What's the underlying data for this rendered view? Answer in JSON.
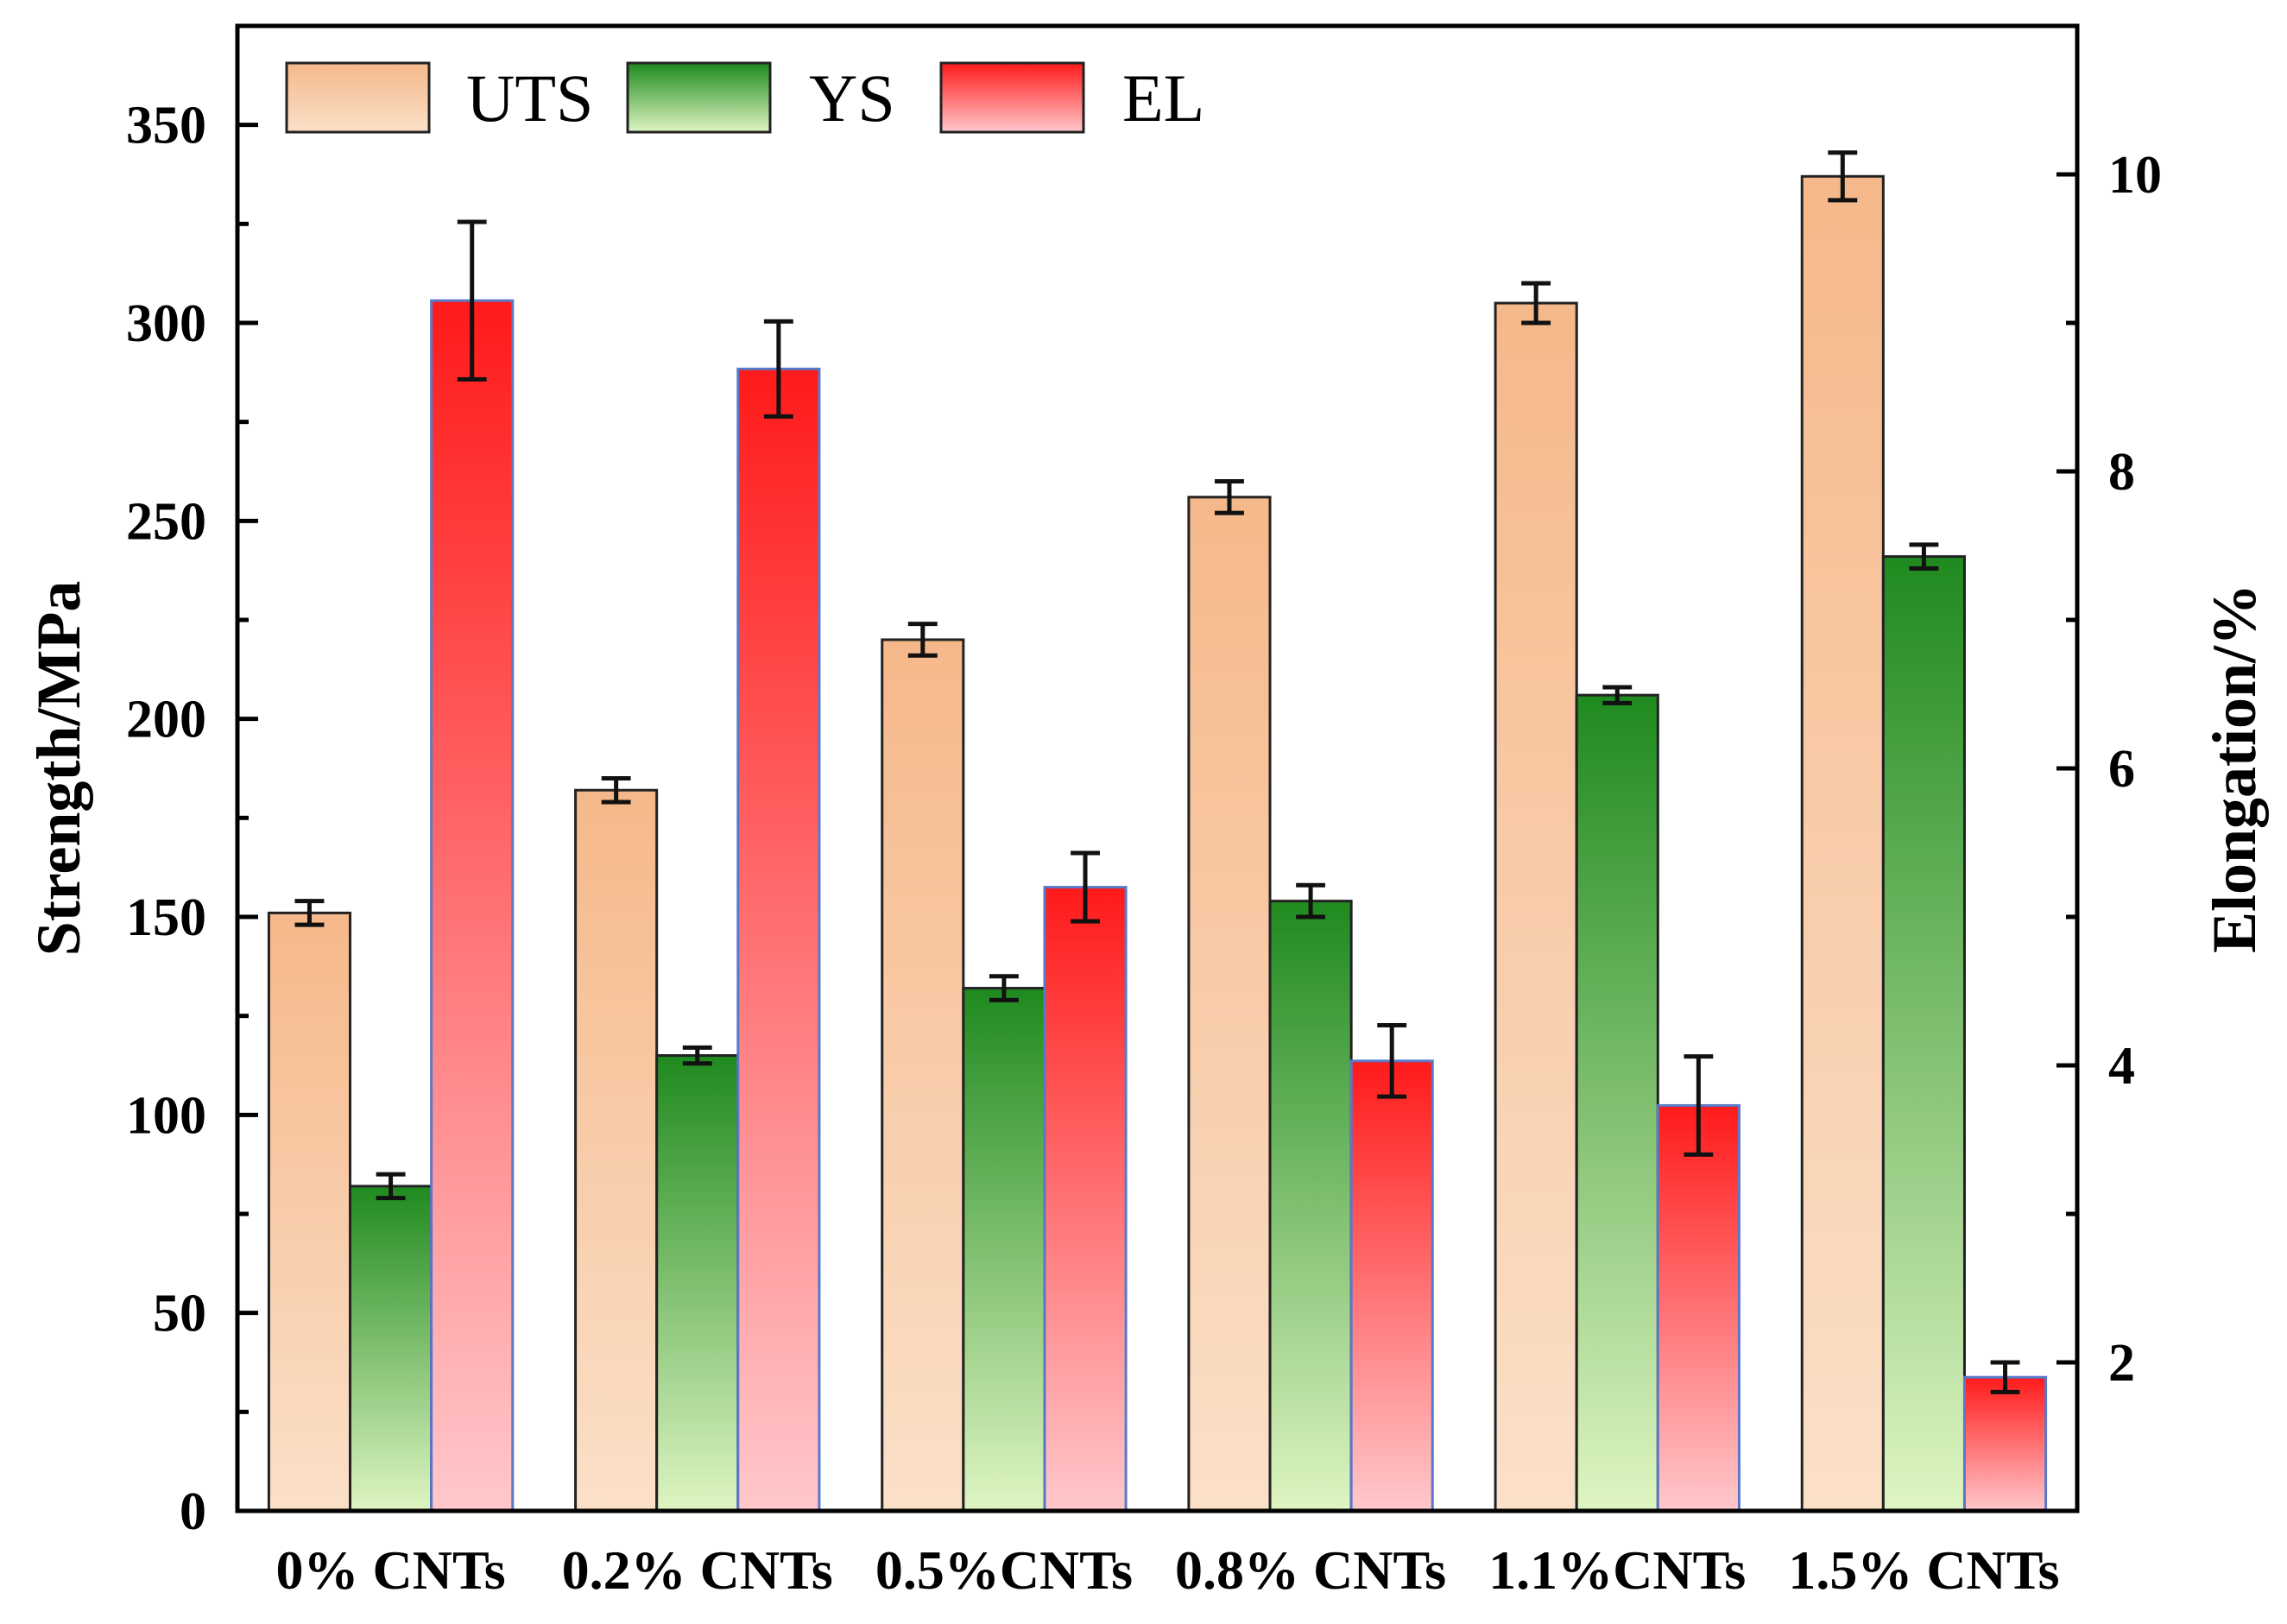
{
  "chart_data": {
    "type": "bar",
    "categories": [
      "0% CNTs",
      "0.2% CNTs",
      "0.5%CNTs",
      "0.8% CNTs",
      "1.1%CNTs",
      "1.5% CNTs"
    ],
    "series": [
      {
        "name": "UTS",
        "axis": "left",
        "values": [
          151,
          182,
          220,
          256,
          305,
          337
        ],
        "errors": [
          3,
          3,
          4,
          4,
          5,
          6
        ]
      },
      {
        "name": "YS",
        "axis": "left",
        "values": [
          82,
          115,
          132,
          154,
          206,
          241
        ],
        "errors": [
          3,
          2,
          3,
          4,
          2,
          3
        ]
      },
      {
        "name": "EL",
        "axis": "right",
        "values": [
          9.15,
          8.69,
          5.2,
          4.03,
          3.73,
          1.9
        ],
        "errors": [
          0.53,
          0.32,
          0.23,
          0.24,
          0.33,
          0.1
        ]
      }
    ],
    "title": "",
    "xlabel": "",
    "ylabel": "Strength/MPa",
    "ylabel_right": "Elongation/%",
    "ylim": [
      0,
      375
    ],
    "ylim_right": [
      1,
      11
    ],
    "yticks": [
      "0",
      "50",
      "100",
      "150",
      "200",
      "250",
      "300",
      "350"
    ],
    "yticks_right": [
      "2",
      "4",
      "6",
      "8",
      "10"
    ],
    "legend": {
      "position": "top-left",
      "orientation": "horizontal",
      "entries": [
        "UTS",
        "YS",
        "EL"
      ]
    },
    "grid": false
  },
  "colors": {
    "UTS": {
      "top": "#f5b88a",
      "bottom": "#fbe0c8"
    },
    "YS": {
      "top": "#1f8a1f",
      "bottom": "#dff5c2"
    },
    "EL": {
      "top": "#ff1a1a",
      "bottom": "#ffc8cc"
    }
  }
}
